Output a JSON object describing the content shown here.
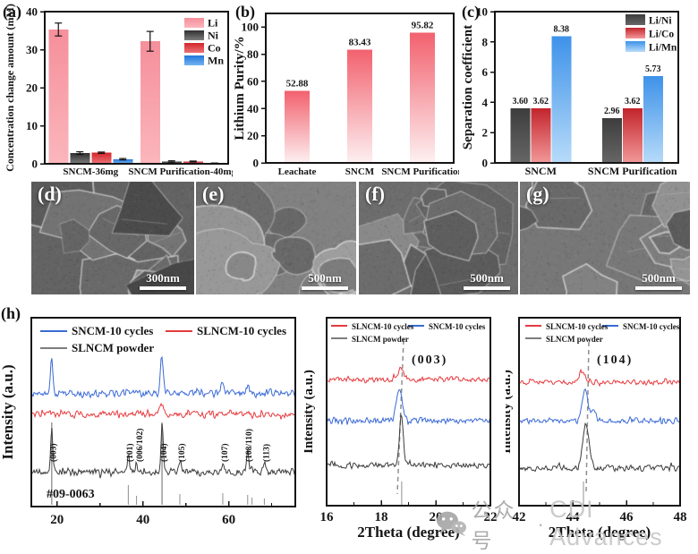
{
  "panels": {
    "a": "(a)",
    "b": "(b)",
    "c": "(c)",
    "h": "(h)"
  },
  "sem": [
    {
      "label": "(d)",
      "scale": "300nm",
      "base": "#636363",
      "shape": "angular",
      "seed": 7
    },
    {
      "label": "(e)",
      "scale": "500nm",
      "base": "#818181",
      "shape": "rounded",
      "seed": 13
    },
    {
      "label": "(f)",
      "scale": "500nm",
      "base": "#6d6d6d",
      "shape": "angular",
      "seed": 21
    },
    {
      "label": "(g)",
      "scale": "500nm",
      "base": "#777777",
      "shape": "angular",
      "seed": 29
    }
  ],
  "watermark": {
    "account": "公众号",
    "separator": "·",
    "name": "CDI Advances"
  },
  "chart_data": [
    {
      "id": "a",
      "type": "bar",
      "ylabel": "Concentration change amount (mM)",
      "ylim": [
        0,
        40
      ],
      "yticks": [
        0,
        10,
        20,
        30,
        40
      ],
      "categories": [
        "SNCM-36mg",
        "SNCM Purification-40mg"
      ],
      "series": [
        {
          "name": "Li",
          "values": [
            35.3,
            32.2
          ],
          "errors": [
            1.7,
            2.6
          ],
          "color": [
            "#f58f9b",
            "#fbb6bc"
          ]
        },
        {
          "name": "Ni",
          "values": [
            2.8,
            0.6
          ],
          "errors": [
            0.35,
            0.18
          ],
          "color": [
            "#2f2f2f",
            "#7d7d7d"
          ]
        },
        {
          "name": "Co",
          "values": [
            2.9,
            0.6
          ],
          "errors": [
            0.18,
            0.12
          ],
          "color": [
            "#d3262b",
            "#ec7276"
          ]
        },
        {
          "name": "Mn",
          "values": [
            1.2,
            0.12
          ],
          "errors": [
            0.18,
            0.08
          ],
          "color": [
            "#2276dd",
            "#74b2f0"
          ]
        }
      ],
      "legend": true,
      "grid": false
    },
    {
      "id": "b",
      "type": "bar",
      "ylabel": "Lithium Purity/%",
      "ylim": [
        0,
        110
      ],
      "yticks": [
        0,
        20,
        40,
        60,
        80,
        100
      ],
      "categories": [
        "Leachate",
        "SNCM",
        "SNCM Purification"
      ],
      "series": [
        {
          "name": "Lithium Purity",
          "values": [
            52.88,
            83.43,
            95.82
          ],
          "labels": [
            "52.88",
            "83.43",
            "95.82"
          ],
          "color": [
            "#f2616e",
            "#fdf0f1"
          ]
        }
      ],
      "legend": false,
      "grid": false
    },
    {
      "id": "c",
      "type": "bar",
      "ylabel": "Separation coefficient",
      "ylim": [
        0,
        10
      ],
      "yticks": [
        0,
        2,
        4,
        6,
        8,
        10
      ],
      "categories": [
        "SNCM",
        "SNCM Purification"
      ],
      "series": [
        {
          "name": "Li/Ni",
          "values": [
            3.6,
            2.96
          ],
          "labels": [
            "3.60",
            "2.96"
          ],
          "color": [
            "#3d3d3d",
            "#666666"
          ]
        },
        {
          "name": "Li/Co",
          "values": [
            3.62,
            3.62
          ],
          "labels": [
            "3.62",
            "3.62"
          ],
          "color": [
            "#c2242b",
            "#f29899"
          ]
        },
        {
          "name": "Li/Mn",
          "values": [
            8.38,
            5.73
          ],
          "labels": [
            "8.38",
            "5.73"
          ],
          "color": [
            "#3e92e9",
            "#b7dbf9"
          ]
        }
      ],
      "legend": true,
      "grid": false
    },
    {
      "id": "h_main",
      "type": "line",
      "ylabel": "Intensity (a.u.)",
      "xlabel": "",
      "xlim": [
        14,
        75.5
      ],
      "xticks": [
        20,
        40,
        60
      ],
      "minor_xticks": [
        30,
        50,
        70
      ],
      "legend": [
        {
          "label": "SNCM-10 cycles",
          "color": "#3a6ad5"
        },
        {
          "label": "SLNCM-10 cycles",
          "color": "#e63a3e"
        },
        {
          "label": "SLNCM powder",
          "color": "#7d7d7d"
        }
      ],
      "series": [
        {
          "name": "SNCM-10 cycles",
          "color": "#3a6ad5",
          "peaks": [
            [
              18.7,
              38,
              0.3
            ],
            [
              36.6,
              8,
              0.3
            ],
            [
              44.4,
              43,
              0.35
            ],
            [
              58.6,
              10,
              0.35
            ],
            [
              64.4,
              9,
              0.35
            ]
          ]
        },
        {
          "name": "SLNCM-10 cycles",
          "color": "#e63a3e",
          "peaks": [
            [
              44.4,
              12,
              0.5
            ]
          ]
        },
        {
          "name": "SLNCM powder",
          "color": "#3c3c3c",
          "peaks": [
            [
              18.75,
              52,
              0.22
            ],
            [
              36.6,
              22,
              0.2
            ],
            [
              38.5,
              9,
              0.2
            ],
            [
              44.45,
              55,
              0.25
            ],
            [
              48.6,
              12,
              0.25
            ],
            [
              58.6,
              13,
              0.25
            ],
            [
              64.4,
              24,
              0.22
            ],
            [
              65.4,
              10,
              0.2
            ],
            [
              68.3,
              8,
              0.25
            ]
          ]
        }
      ],
      "peak_labels": [
        [
          "(003)",
          18.7
        ],
        [
          "(101)",
          36.5
        ],
        [
          "(006/102)",
          38.8
        ],
        [
          "(104)",
          44.4
        ],
        [
          "(105)",
          48.6
        ],
        [
          "(107)",
          58.6
        ],
        [
          "(108/110)",
          64.2
        ],
        [
          "(113)",
          68.3
        ]
      ],
      "reference_label": "#09-0063",
      "ref_sticks": [
        [
          18.75,
          92
        ],
        [
          36.6,
          22
        ],
        [
          38.5,
          10
        ],
        [
          44.45,
          90
        ],
        [
          48.6,
          12
        ],
        [
          58.6,
          13
        ],
        [
          64.4,
          11
        ],
        [
          65.4,
          8
        ],
        [
          68.3,
          7
        ]
      ]
    },
    {
      "id": "h_003",
      "type": "line",
      "ylabel": "Intensity (a.u.)",
      "xlabel": "2Theta (degree)",
      "xlim": [
        16,
        22
      ],
      "xticks": [
        16,
        18,
        20,
        22
      ],
      "minor_xticks": [
        17,
        19,
        21
      ],
      "annotation": "(003)",
      "legend": [
        {
          "label": "SNCM-10 cycles",
          "color": "#3a6ad5"
        },
        {
          "label": "SLNCM-10 cycles",
          "color": "#e63a3e"
        },
        {
          "label": "SLNCM powder",
          "color": "#7d7d7d"
        }
      ],
      "series": [
        {
          "name": "SLNCM-10 cycles",
          "color": "#e63a3e",
          "peaks": [
            [
              18.72,
              11,
              0.1
            ]
          ]
        },
        {
          "name": "SNCM-10 cycles",
          "color": "#3a6ad5",
          "peaks": [
            [
              18.66,
              36,
              0.1
            ]
          ]
        },
        {
          "name": "SLNCM powder",
          "color": "#3c3c3c",
          "peaks": [
            [
              18.74,
              55,
              0.07
            ]
          ]
        }
      ],
      "ref_sticks": [
        [
          18.75,
          26
        ]
      ]
    },
    {
      "id": "h_104",
      "type": "line",
      "ylabel": "Intensity (a.u.)",
      "xlabel": "2Theta (degree)",
      "xlim": [
        42,
        48
      ],
      "xticks": [
        42,
        44,
        46,
        48
      ],
      "minor_xticks": [
        43,
        45,
        47
      ],
      "annotation": "(104)",
      "legend": [
        {
          "label": "SNCM-10 cycles",
          "color": "#3a6ad5"
        },
        {
          "label": "SLNCM-10 cycles",
          "color": "#e63a3e"
        },
        {
          "label": "SLNCM powder",
          "color": "#7d7d7d"
        }
      ],
      "series": [
        {
          "name": "SLNCM-10 cycles",
          "color": "#e63a3e",
          "peaks": [
            [
              44.35,
              11,
              0.12
            ]
          ]
        },
        {
          "name": "SNCM-10 cycles",
          "color": "#3a6ad5",
          "peaks": [
            [
              44.45,
              33,
              0.12
            ],
            [
              44.78,
              12,
              0.08
            ]
          ]
        },
        {
          "name": "SLNCM powder",
          "color": "#3c3c3c",
          "peaks": [
            [
              44.5,
              49,
              0.12
            ]
          ]
        }
      ],
      "ref_sticks": [
        [
          44.4,
          26
        ]
      ]
    }
  ]
}
